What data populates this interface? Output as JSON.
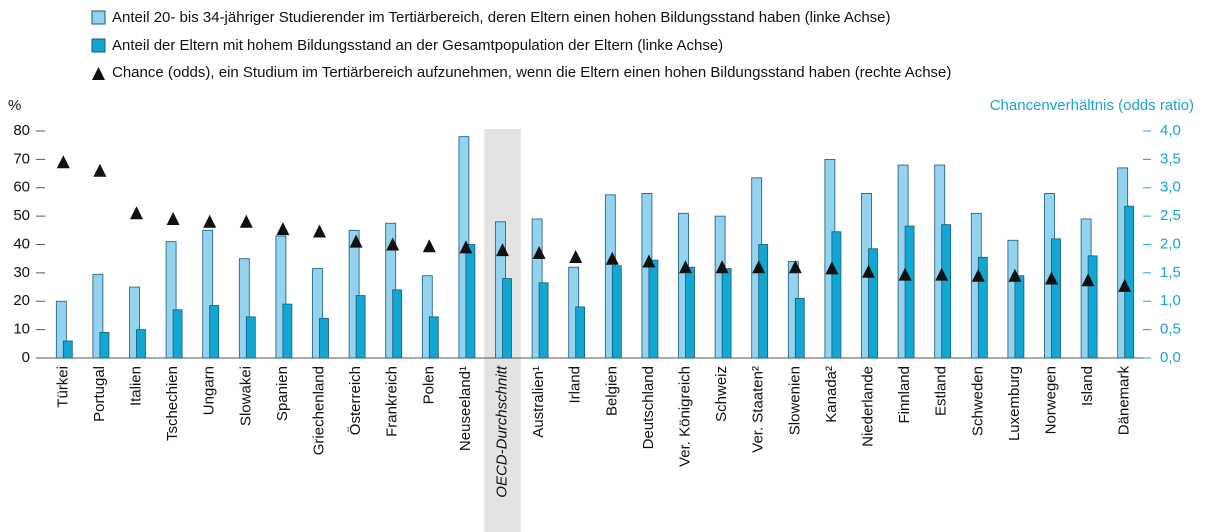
{
  "chart_data": {
    "type": "bar",
    "legend": [
      "Anteil 20- bis 34-jähriger Studierender im Tertiärbereich, deren Eltern einen hohen Bildungsstand haben (linke Achse)",
      "Anteil der Eltern mit hohem Bildungsstand an der Gesamtpopulation der Eltern (linke Achse)",
      "Chance (odds), ein Studium im Tertiärbereich aufzunehmen, wenn die Eltern einen hohen Bildungsstand haben (rechte Achse)"
    ],
    "y_label": "%",
    "y2_label": "Chancenverhältnis (odds ratio)",
    "highlight_category": "OECD-Durchschnitt",
    "categories": [
      "Türkei",
      "Portugal",
      "Italien",
      "Tschechien",
      "Ungarn",
      "Slowakei",
      "Spanien",
      "Griechenland",
      "Österreich",
      "Frankreich",
      "Polen",
      "Neuseeland¹",
      "OECD-Durchschnitt",
      "Australien¹",
      "Irland",
      "Belgien",
      "Deutschland",
      "Ver. Königreich",
      "Schweiz",
      "Ver. Staaten²",
      "Slowenien",
      "Kanada²",
      "Niederlande",
      "Finnland",
      "Estland",
      "Schweden",
      "Luxemburg",
      "Norwegen",
      "Island",
      "Dänemark"
    ],
    "series": [
      {
        "name": "Anteil 20- bis 34-jähriger Studierender",
        "color": "#93d3ef",
        "values": [
          20,
          29.5,
          25,
          41,
          45,
          35,
          43,
          31.5,
          45,
          47.5,
          29,
          78,
          48,
          49,
          32,
          57.5,
          58,
          51,
          50,
          63.5,
          34,
          70,
          58,
          68,
          68,
          51,
          41.5,
          58,
          49,
          67
        ]
      },
      {
        "name": "Anteil der Eltern mit hohem Bildungsstand",
        "color": "#12a6d2",
        "values": [
          6,
          9,
          10,
          17,
          18.5,
          14.5,
          19,
          14,
          22,
          24,
          14.5,
          40,
          28,
          26.5,
          18,
          32.5,
          34.5,
          32,
          31.5,
          40,
          21,
          44.5,
          38.5,
          46.5,
          47,
          35.5,
          29,
          42,
          36,
          53.5
        ]
      },
      {
        "name": "Chance (odds)",
        "color": "#111111",
        "axis": "y2",
        "values": [
          3.45,
          3.3,
          2.55,
          2.45,
          2.4,
          2.4,
          2.27,
          2.23,
          2.05,
          2.0,
          1.97,
          1.95,
          1.9,
          1.85,
          1.78,
          1.75,
          1.7,
          1.6,
          1.6,
          1.6,
          1.6,
          1.58,
          1.52,
          1.47,
          1.47,
          1.45,
          1.45,
          1.4,
          1.37,
          1.27
        ]
      }
    ],
    "ylim": [
      0,
      80
    ],
    "yticks": [
      0,
      10,
      20,
      30,
      40,
      50,
      60,
      70,
      80
    ],
    "y2lim": [
      0,
      4
    ],
    "y2ticks": [
      {
        "value": 0,
        "label": "0,0"
      },
      {
        "value": 0.5,
        "label": "0,5"
      },
      {
        "value": 1,
        "label": "1,0"
      },
      {
        "value": 1.5,
        "label": "1,5"
      },
      {
        "value": 2,
        "label": "2,0"
      },
      {
        "value": 2.5,
        "label": "2,5"
      },
      {
        "value": 3,
        "label": "3,0"
      },
      {
        "value": 3.5,
        "label": "3,5"
      },
      {
        "value": 4,
        "label": "4,0"
      }
    ]
  }
}
